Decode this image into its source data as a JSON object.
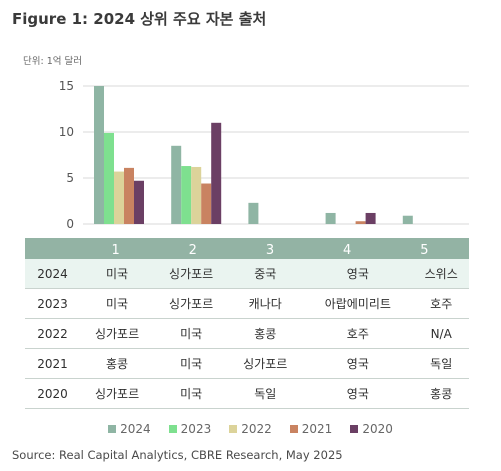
{
  "title": "Figure 1: 2024 상위 주요 자본 출처",
  "unit_label": "단위: 1억 달러",
  "source": "Source: Real Capital Analytics, CBRE Research, May 2025",
  "colors": {
    "2024": "#8fb5a4",
    "2023": "#7ee08f",
    "2022": "#dcd39a",
    "2021": "#c98361",
    "2020": "#6b3f64",
    "axis_band": "#93b3a4"
  },
  "chart_data": {
    "type": "bar",
    "title": "Figure 1: 2024 상위 주요 자본 출처",
    "ylabel": "단위: 1억 달러",
    "ylim": [
      0,
      15
    ],
    "yticks": [
      0,
      5,
      10,
      15
    ],
    "categories": [
      "1",
      "2",
      "3",
      "4",
      "5"
    ],
    "series": [
      {
        "name": "2024",
        "values": [
          15.0,
          8.5,
          2.3,
          1.2,
          0.9
        ]
      },
      {
        "name": "2023",
        "values": [
          9.9,
          6.3,
          0,
          0,
          0
        ]
      },
      {
        "name": "2022",
        "values": [
          5.7,
          6.2,
          0,
          0,
          0
        ]
      },
      {
        "name": "2021",
        "values": [
          6.1,
          4.4,
          0,
          0.3,
          0
        ]
      },
      {
        "name": "2020",
        "values": [
          4.7,
          11.0,
          0,
          1.2,
          0
        ]
      }
    ],
    "legend_position": "bottom"
  },
  "rankings": [
    {
      "year": "2024",
      "items": [
        "미국",
        "싱가포르",
        "중국",
        "영국",
        "스위스"
      ]
    },
    {
      "year": "2023",
      "items": [
        "미국",
        "싱가포르",
        "캐나다",
        "아랍에미리트",
        "호주"
      ]
    },
    {
      "year": "2022",
      "items": [
        "싱가포르",
        "미국",
        "홍콩",
        "호주",
        "N/A"
      ]
    },
    {
      "year": "2021",
      "items": [
        "홍콩",
        "미국",
        "싱가포르",
        "영국",
        "독일"
      ]
    },
    {
      "year": "2020",
      "items": [
        "싱가포르",
        "미국",
        "독일",
        "영국",
        "홍콩"
      ]
    }
  ]
}
